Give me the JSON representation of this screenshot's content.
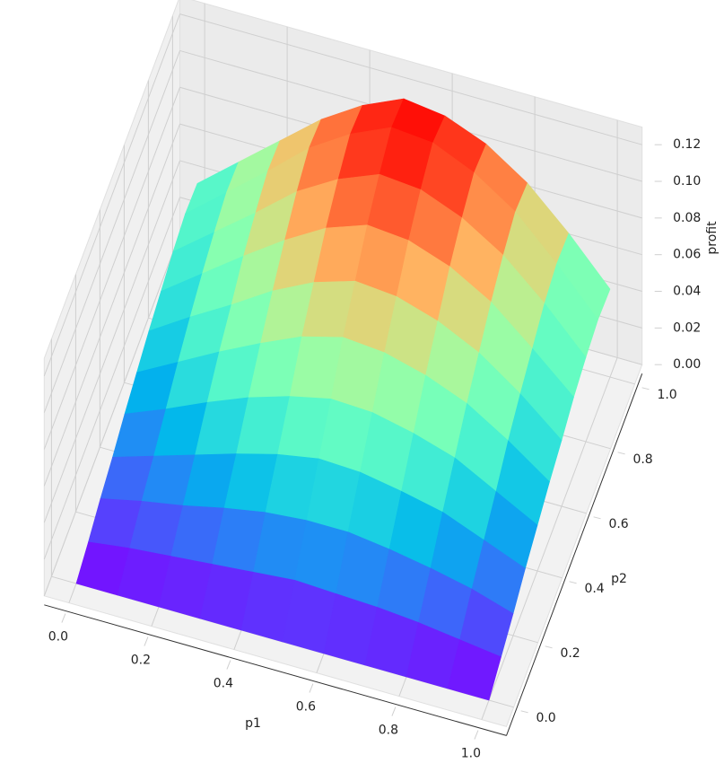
{
  "chart_data": {
    "type": "surface",
    "x_label": "p1",
    "y_label": "p2",
    "z_label": "profit",
    "colormap": "rainbow",
    "x": [
      0,
      0.1,
      0.2,
      0.3,
      0.4,
      0.5,
      0.6,
      0.7,
      0.8,
      0.9,
      1
    ],
    "y": [
      0,
      0.1,
      0.2,
      0.3,
      0.4,
      0.5,
      0.6,
      0.7,
      0.8,
      0.9,
      1
    ],
    "z": [
      [
        0,
        0,
        0,
        0,
        0,
        0,
        0,
        0,
        0,
        0,
        0
      ],
      [
        0.005,
        0.008,
        0.01,
        0.012,
        0.014,
        0.016,
        0.015,
        0.014,
        0.012,
        0.009,
        0.006
      ],
      [
        0.011,
        0.016,
        0.02,
        0.025,
        0.029,
        0.031,
        0.031,
        0.028,
        0.024,
        0.019,
        0.012
      ],
      [
        0.016,
        0.023,
        0.03,
        0.037,
        0.043,
        0.047,
        0.046,
        0.042,
        0.037,
        0.028,
        0.019
      ],
      [
        0.022,
        0.031,
        0.041,
        0.05,
        0.057,
        0.062,
        0.061,
        0.056,
        0.049,
        0.037,
        0.025
      ],
      [
        0.027,
        0.039,
        0.051,
        0.062,
        0.072,
        0.078,
        0.076,
        0.07,
        0.061,
        0.047,
        0.031
      ],
      [
        0.032,
        0.046,
        0.059,
        0.073,
        0.084,
        0.091,
        0.089,
        0.082,
        0.071,
        0.055,
        0.036
      ],
      [
        0.036,
        0.052,
        0.068,
        0.083,
        0.096,
        0.104,
        0.102,
        0.094,
        0.081,
        0.062,
        0.042
      ],
      [
        0.04,
        0.057,
        0.074,
        0.092,
        0.105,
        0.114,
        0.112,
        0.103,
        0.089,
        0.069,
        0.046
      ],
      [
        0.043,
        0.061,
        0.079,
        0.098,
        0.112,
        0.122,
        0.12,
        0.11,
        0.095,
        0.073,
        0.049
      ],
      [
        0.042,
        0.06,
        0.078,
        0.096,
        0.11,
        0.12,
        0.117,
        0.108,
        0.093,
        0.072,
        0.048
      ]
    ],
    "xlim": [
      0,
      1
    ],
    "ylim": [
      0,
      1
    ],
    "zlim": [
      0,
      0.12
    ],
    "xticks": [
      {
        "value": 0,
        "label": "0.0"
      },
      {
        "value": 0.2,
        "label": "0.2"
      },
      {
        "value": 0.4,
        "label": "0.4"
      },
      {
        "value": 0.6,
        "label": "0.6"
      },
      {
        "value": 0.8,
        "label": "0.8"
      },
      {
        "value": 1,
        "label": "1.0"
      }
    ],
    "yticks": [
      {
        "value": 0,
        "label": "0.0"
      },
      {
        "value": 0.2,
        "label": "0.2"
      },
      {
        "value": 0.4,
        "label": "0.4"
      },
      {
        "value": 0.6,
        "label": "0.6"
      },
      {
        "value": 0.8,
        "label": "0.8"
      },
      {
        "value": 1,
        "label": "1.0"
      }
    ],
    "zticks": [
      {
        "value": 0,
        "label": "0.00"
      },
      {
        "value": 0.02,
        "label": "0.02"
      },
      {
        "value": 0.04,
        "label": "0.04"
      },
      {
        "value": 0.06,
        "label": "0.06"
      },
      {
        "value": 0.08,
        "label": "0.08"
      },
      {
        "value": 0.1,
        "label": "0.10"
      },
      {
        "value": 0.12,
        "label": "0.12"
      }
    ],
    "grid": true
  }
}
